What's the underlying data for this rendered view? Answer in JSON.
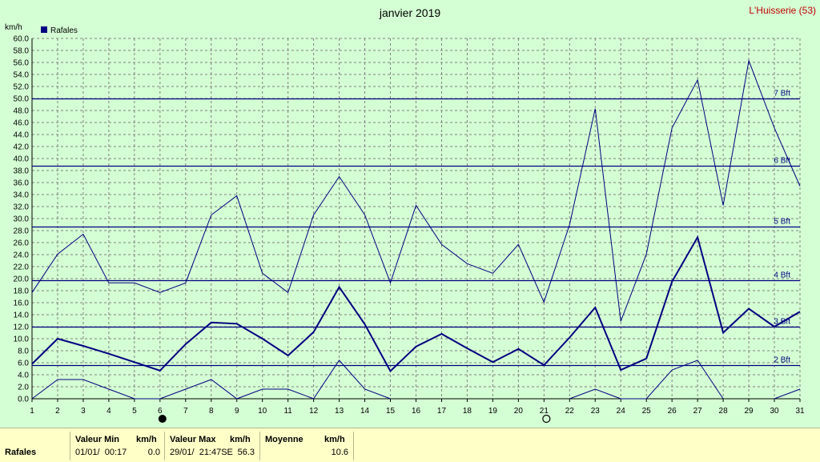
{
  "chart_data": {
    "type": "line",
    "title": "janvier 2019",
    "station": "L'Huisserie (53)",
    "ylabel": "km/h",
    "legend": "Rafales",
    "ylim": [
      0,
      60
    ],
    "yticks": [
      "0.0",
      "2.0",
      "4.0",
      "6.0",
      "8.0",
      "10.0",
      "12.0",
      "14.0",
      "16.0",
      "18.0",
      "20.0",
      "22.0",
      "24.0",
      "26.0",
      "28.0",
      "30.0",
      "32.0",
      "34.0",
      "36.0",
      "38.0",
      "40.0",
      "42.0",
      "44.0",
      "46.0",
      "48.0",
      "50.0",
      "52.0",
      "54.0",
      "56.0",
      "58.0",
      "60.0"
    ],
    "x": [
      1,
      2,
      3,
      4,
      5,
      6,
      7,
      8,
      9,
      10,
      11,
      12,
      13,
      14,
      15,
      16,
      17,
      18,
      19,
      20,
      21,
      22,
      23,
      24,
      25,
      26,
      27,
      28,
      29,
      30,
      31
    ],
    "series": [
      {
        "name": "max",
        "width": 1,
        "values": [
          17.7,
          24.1,
          27.4,
          19.3,
          19.3,
          17.7,
          19.3,
          30.6,
          33.8,
          20.9,
          17.7,
          30.6,
          37.0,
          30.6,
          19.3,
          32.2,
          25.7,
          22.5,
          20.9,
          25.7,
          16.1,
          29.0,
          48.3,
          12.9,
          24.1,
          45.1,
          53.1,
          32.2,
          56.3,
          45.1,
          35.4
        ]
      },
      {
        "name": "mean",
        "width": 2,
        "values": [
          5.8,
          10.0,
          8.8,
          7.5,
          6.1,
          4.7,
          9.1,
          12.7,
          12.5,
          10.0,
          7.2,
          11.1,
          18.6,
          12.4,
          4.6,
          8.7,
          10.8,
          8.4,
          6.1,
          8.3,
          5.6,
          10.2,
          15.2,
          4.8,
          6.7,
          19.5,
          26.9,
          11.0,
          15.0,
          12.0,
          14.5
        ]
      },
      {
        "name": "min",
        "width": 1,
        "values": [
          0,
          3.2,
          3.2,
          1.6,
          0,
          0,
          1.6,
          3.2,
          0,
          1.6,
          1.6,
          0,
          6.4,
          1.6,
          0,
          null,
          null,
          null,
          null,
          null,
          null,
          0,
          1.6,
          0,
          0,
          4.8,
          6.4,
          0,
          null,
          0,
          1.6
        ]
      }
    ],
    "beaufort": [
      {
        "label": "2 Bft",
        "value": 5.6
      },
      {
        "label": "3 Bft",
        "value": 12.0
      },
      {
        "label": "4 Bft",
        "value": 19.7
      },
      {
        "label": "5 Bft",
        "value": 28.7
      },
      {
        "label": "6 Bft",
        "value": 38.8
      },
      {
        "label": "7 Bft",
        "value": 50.0
      }
    ],
    "moon_phases": [
      {
        "day": 6,
        "phase": "new"
      },
      {
        "day": 21,
        "phase": "full"
      }
    ],
    "grid": true
  },
  "colors": {
    "background": "#d4ffd4",
    "line": "#000080",
    "grid": "#808080",
    "station": "#c00000",
    "footer": "#ffffc8"
  },
  "footer": {
    "row_label": "Rafales",
    "min_header": "Valeur Min",
    "unit1": "km/h",
    "min_date": "01/01/  00:17",
    "min_value": "0.0",
    "max_header": "Valeur Max",
    "unit2": "km/h",
    "max_date": "29/01/  21:47SE",
    "max_value": "56.3",
    "mean_header": "Moyenne",
    "unit3": "km/h",
    "mean_value": "10.6"
  }
}
